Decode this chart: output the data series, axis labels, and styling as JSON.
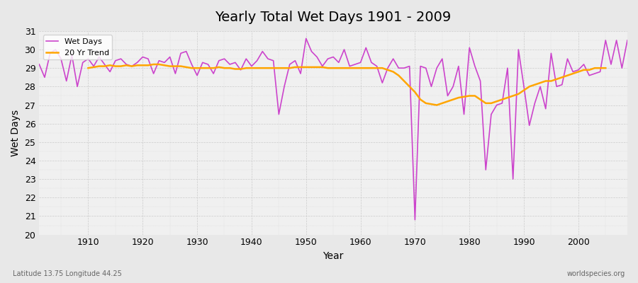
{
  "title": "Yearly Total Wet Days 1901 - 2009",
  "xlabel": "Year",
  "ylabel": "Wet Days",
  "footnote_left": "Latitude 13.75 Longitude 44.25",
  "footnote_right": "worldspecies.org",
  "line_color": "#cc44cc",
  "trend_color": "#ffa500",
  "bg_color": "#e8e8e8",
  "plot_bg_color": "#f0f0f0",
  "ylim": [
    20,
    31
  ],
  "xlim": [
    1901,
    2009
  ],
  "yticks": [
    20,
    21,
    22,
    23,
    24,
    25,
    26,
    27,
    28,
    29,
    30,
    31
  ],
  "xticks": [
    1910,
    1920,
    1930,
    1940,
    1950,
    1960,
    1970,
    1980,
    1990,
    2000
  ],
  "years": [
    1901,
    1902,
    1903,
    1904,
    1905,
    1906,
    1907,
    1908,
    1909,
    1910,
    1911,
    1912,
    1913,
    1914,
    1915,
    1916,
    1917,
    1918,
    1919,
    1920,
    1921,
    1922,
    1923,
    1924,
    1925,
    1926,
    1927,
    1928,
    1929,
    1930,
    1931,
    1932,
    1933,
    1934,
    1935,
    1936,
    1937,
    1938,
    1939,
    1940,
    1941,
    1942,
    1943,
    1944,
    1945,
    1946,
    1947,
    1948,
    1949,
    1950,
    1951,
    1952,
    1953,
    1954,
    1955,
    1956,
    1957,
    1958,
    1959,
    1960,
    1961,
    1962,
    1963,
    1964,
    1965,
    1966,
    1967,
    1968,
    1969,
    1970,
    1971,
    1972,
    1973,
    1974,
    1975,
    1976,
    1977,
    1978,
    1979,
    1980,
    1981,
    1982,
    1983,
    1984,
    1985,
    1986,
    1987,
    1988,
    1989,
    1990,
    1991,
    1992,
    1993,
    1994,
    1995,
    1996,
    1997,
    1998,
    1999,
    2000,
    2001,
    2002,
    2003,
    2004,
    2005,
    2006,
    2007,
    2008,
    2009
  ],
  "wet_days": [
    29.2,
    28.5,
    29.8,
    30.0,
    29.5,
    28.3,
    29.7,
    28.0,
    29.3,
    29.5,
    29.1,
    29.6,
    29.2,
    28.8,
    29.4,
    29.5,
    29.2,
    29.1,
    29.3,
    29.6,
    29.5,
    28.7,
    29.4,
    29.3,
    29.6,
    28.7,
    29.8,
    29.9,
    29.2,
    28.6,
    29.3,
    29.2,
    28.7,
    29.4,
    29.5,
    29.2,
    29.3,
    28.9,
    29.5,
    29.1,
    29.4,
    29.9,
    29.5,
    29.4,
    26.5,
    28.0,
    29.2,
    29.4,
    28.7,
    30.6,
    29.9,
    29.6,
    29.1,
    29.5,
    29.6,
    29.3,
    30.0,
    29.1,
    29.2,
    29.3,
    30.1,
    29.3,
    29.1,
    28.2,
    29.0,
    29.5,
    29.0,
    29.0,
    29.1,
    20.8,
    29.1,
    29.0,
    28.0,
    29.0,
    29.5,
    27.5,
    28.0,
    29.1,
    26.5,
    30.1,
    29.1,
    28.3,
    23.5,
    26.5,
    27.0,
    27.1,
    29.0,
    23.0,
    30.0,
    28.0,
    25.9,
    27.1,
    28.0,
    26.8,
    29.8,
    28.0,
    28.1,
    29.5,
    28.8,
    28.9,
    29.2,
    28.6,
    28.7,
    28.8,
    30.5,
    29.2,
    30.5,
    29.0,
    30.5
  ],
  "trend_years": [
    1910,
    1911,
    1912,
    1913,
    1914,
    1915,
    1916,
    1917,
    1918,
    1919,
    1920,
    1921,
    1922,
    1923,
    1924,
    1925,
    1926,
    1927,
    1928,
    1929,
    1930,
    1931,
    1932,
    1933,
    1934,
    1935,
    1936,
    1937,
    1938,
    1939,
    1940,
    1941,
    1942,
    1943,
    1944,
    1945,
    1946,
    1947,
    1948,
    1949,
    1950,
    1951,
    1952,
    1953,
    1954,
    1955,
    1956,
    1957,
    1958,
    1959,
    1960,
    1961,
    1962,
    1963,
    1964,
    1965,
    1966,
    1967,
    1968,
    1969,
    1970,
    1971,
    1972,
    1973,
    1974,
    1975,
    1976,
    1977,
    1978,
    1979,
    1980,
    1981,
    1982,
    1983,
    1984,
    1985,
    1986,
    1987,
    1988,
    1989,
    1990,
    1991,
    1992,
    1993,
    1994,
    1995,
    1996,
    1997,
    1998,
    1999,
    2000,
    2001,
    2002,
    2003,
    2004,
    2005
  ],
  "trend_vals": [
    29.0,
    29.05,
    29.1,
    29.1,
    29.15,
    29.1,
    29.1,
    29.15,
    29.1,
    29.15,
    29.15,
    29.15,
    29.2,
    29.2,
    29.15,
    29.1,
    29.1,
    29.1,
    29.05,
    29.0,
    29.0,
    29.0,
    29.0,
    29.0,
    29.05,
    29.0,
    29.0,
    28.95,
    28.95,
    29.0,
    29.0,
    29.0,
    29.0,
    29.0,
    29.0,
    29.0,
    29.0,
    29.0,
    29.05,
    29.05,
    29.05,
    29.05,
    29.05,
    29.05,
    29.0,
    29.0,
    29.0,
    29.0,
    29.0,
    29.0,
    29.0,
    29.0,
    29.0,
    29.0,
    29.0,
    28.9,
    28.8,
    28.6,
    28.3,
    28.0,
    27.7,
    27.3,
    27.1,
    27.05,
    27.0,
    27.1,
    27.2,
    27.3,
    27.4,
    27.45,
    27.5,
    27.5,
    27.3,
    27.1,
    27.1,
    27.2,
    27.3,
    27.4,
    27.5,
    27.6,
    27.8,
    28.0,
    28.1,
    28.2,
    28.3,
    28.3,
    28.4,
    28.5,
    28.6,
    28.7,
    28.8,
    28.9,
    28.9,
    29.0,
    29.0,
    29.0
  ]
}
